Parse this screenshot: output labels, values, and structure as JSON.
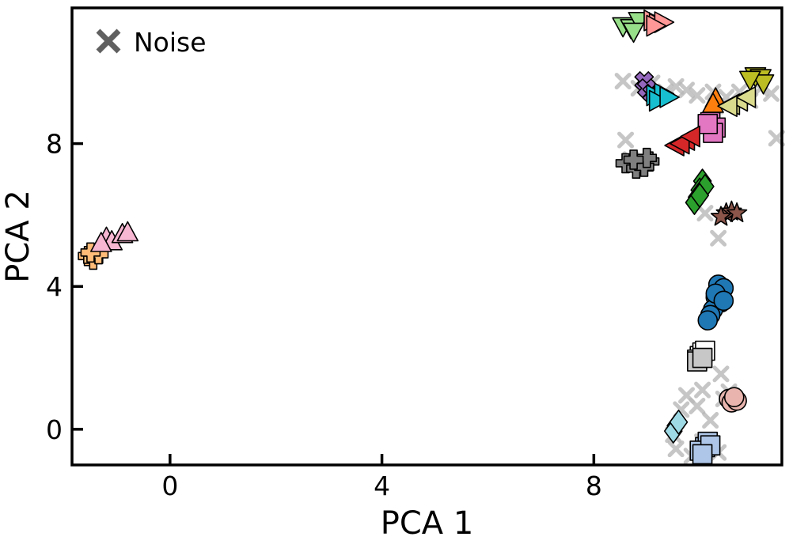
{
  "chart_data": {
    "type": "scatter",
    "title": "",
    "xlabel": "PCA 1",
    "ylabel": "PCA 2",
    "xlim": [
      -1.85,
      11.55
    ],
    "ylim": [
      -1.0,
      11.8
    ],
    "xticks": [
      0,
      4,
      8
    ],
    "yticks": [
      0,
      4,
      8
    ],
    "grid": false,
    "legend": {
      "position": "top-left",
      "entries": [
        {
          "label": "Noise",
          "marker": "x-icon",
          "color": "#606060"
        }
      ]
    },
    "noise": {
      "color": "#b8b8b8",
      "points": [
        [
          8.55,
          9.75
        ],
        [
          8.85,
          9.55
        ],
        [
          9.1,
          9.7
        ],
        [
          9.35,
          9.45
        ],
        [
          9.55,
          9.6
        ],
        [
          9.75,
          9.5
        ],
        [
          9.95,
          9.35
        ],
        [
          10.25,
          9.45
        ],
        [
          10.5,
          9.3
        ],
        [
          10.75,
          9.45
        ],
        [
          10.95,
          9.2
        ],
        [
          11.15,
          9.55
        ],
        [
          11.35,
          9.4
        ],
        [
          10.3,
          9.05
        ],
        [
          11.45,
          8.15
        ],
        [
          8.6,
          8.1
        ],
        [
          8.7,
          7.55
        ],
        [
          10.35,
          5.35
        ],
        [
          10.1,
          6.05
        ],
        [
          10.4,
          1.55
        ],
        [
          10.05,
          1.1
        ],
        [
          9.75,
          0.95
        ],
        [
          9.65,
          0.55
        ],
        [
          9.95,
          0.65
        ],
        [
          10.2,
          0.25
        ],
        [
          10.45,
          0.85
        ],
        [
          9.5,
          -0.15
        ],
        [
          9.55,
          -0.55
        ],
        [
          10.05,
          -0.35
        ],
        [
          10.35,
          -0.65
        ],
        [
          9.85,
          -0.75
        ],
        [
          10.55,
          1.05
        ]
      ]
    },
    "series": [
      {
        "marker": "circle",
        "color": "#1f77b4",
        "points": [
          [
            10.35,
            4.05
          ],
          [
            10.45,
            3.95
          ],
          [
            10.3,
            3.7
          ],
          [
            10.4,
            3.55
          ],
          [
            10.25,
            3.35
          ],
          [
            10.2,
            3.2
          ],
          [
            10.15,
            3.05
          ],
          [
            10.3,
            3.8
          ],
          [
            10.45,
            3.6
          ]
        ]
      },
      {
        "marker": "circle",
        "color": "#e8b4ad",
        "points": [
          [
            10.55,
            0.85
          ],
          [
            10.6,
            0.75
          ],
          [
            10.7,
            0.8
          ],
          [
            10.65,
            0.9
          ]
        ]
      },
      {
        "marker": "square",
        "color": "#ffffff",
        "points": [
          [
            10.0,
            2.05
          ],
          [
            10.05,
            2.15
          ],
          [
            9.95,
            1.95
          ],
          [
            10.1,
            2.2
          ]
        ]
      },
      {
        "marker": "square",
        "color": "#c7c7c7",
        "points": [
          [
            9.95,
            1.9
          ],
          [
            10.05,
            2.0
          ]
        ]
      },
      {
        "marker": "square",
        "color": "#aec7e8",
        "points": [
          [
            10.1,
            -0.5
          ],
          [
            10.15,
            -0.35
          ],
          [
            10.0,
            -0.6
          ],
          [
            10.2,
            -0.45
          ],
          [
            10.05,
            -0.7
          ]
        ]
      },
      {
        "marker": "square",
        "color": "#e377c2",
        "points": [
          [
            10.2,
            8.6
          ],
          [
            10.3,
            8.45
          ],
          [
            10.25,
            8.3
          ],
          [
            10.15,
            8.55
          ]
        ]
      },
      {
        "marker": "diamond",
        "color": "#2ca02c",
        "points": [
          [
            10.05,
            6.95
          ],
          [
            10.0,
            6.7
          ],
          [
            9.95,
            6.5
          ],
          [
            10.1,
            6.8
          ],
          [
            9.9,
            6.35
          ],
          [
            10.0,
            6.55
          ]
        ]
      },
      {
        "marker": "diamond",
        "color": "#9edae5",
        "points": [
          [
            9.55,
            0.1
          ],
          [
            9.5,
            -0.05
          ],
          [
            9.6,
            0.2
          ]
        ]
      },
      {
        "marker": "plus",
        "color": "#7f7f7f",
        "points": [
          [
            8.6,
            7.45
          ],
          [
            8.8,
            7.3
          ],
          [
            9.05,
            7.5
          ],
          [
            8.95,
            7.35
          ],
          [
            9.0,
            7.6
          ],
          [
            8.75,
            7.55
          ]
        ]
      },
      {
        "marker": "plus",
        "color": "#ffbb78",
        "points": [
          [
            -1.55,
            4.85
          ],
          [
            -1.45,
            4.75
          ],
          [
            -1.35,
            4.9
          ],
          [
            -1.5,
            4.95
          ]
        ]
      },
      {
        "marker": "xfill",
        "color": "#9467bd",
        "points": [
          [
            8.95,
            9.75
          ],
          [
            9.0,
            9.55
          ],
          [
            9.1,
            9.4
          ]
        ]
      },
      {
        "marker": "star",
        "color": "#8c564b",
        "points": [
          [
            10.5,
            6.05
          ],
          [
            10.6,
            6.1
          ],
          [
            10.4,
            5.95
          ],
          [
            10.7,
            6.05
          ]
        ]
      },
      {
        "marker": "tri-up",
        "color": "#ff7f0e",
        "points": [
          [
            10.3,
            9.25
          ],
          [
            10.25,
            9.1
          ]
        ]
      },
      {
        "marker": "tri-up",
        "color": "#f7b6d2",
        "points": [
          [
            -1.2,
            5.35
          ],
          [
            -1.1,
            5.25
          ],
          [
            -0.9,
            5.45
          ],
          [
            -0.8,
            5.5
          ],
          [
            -1.3,
            5.2
          ]
        ]
      },
      {
        "marker": "tri-down",
        "color": "#98df8a",
        "points": [
          [
            8.55,
            11.3
          ],
          [
            8.7,
            11.25
          ],
          [
            8.85,
            11.45
          ],
          [
            8.75,
            11.15
          ]
        ]
      },
      {
        "marker": "tri-down",
        "color": "#bcbd22",
        "points": [
          [
            11.05,
            9.9
          ],
          [
            11.15,
            9.85
          ],
          [
            11.2,
            9.7
          ],
          [
            10.95,
            9.8
          ]
        ]
      },
      {
        "marker": "tri-right",
        "color": "#ff9896",
        "points": [
          [
            9.1,
            11.45
          ],
          [
            9.2,
            11.35
          ],
          [
            9.3,
            11.4
          ],
          [
            9.15,
            11.3
          ]
        ]
      },
      {
        "marker": "tri-right",
        "color": "#17becf",
        "points": [
          [
            9.15,
            9.35
          ],
          [
            9.3,
            9.4
          ],
          [
            9.2,
            9.2
          ],
          [
            9.4,
            9.3
          ]
        ]
      },
      {
        "marker": "tri-left",
        "color": "#d62728",
        "points": [
          [
            9.55,
            7.95
          ],
          [
            9.75,
            8.1
          ],
          [
            9.65,
            8.0
          ],
          [
            9.85,
            8.2
          ]
        ]
      },
      {
        "marker": "tri-left",
        "color": "#dbdb8d",
        "points": [
          [
            10.6,
            9.1
          ],
          [
            10.75,
            9.2
          ],
          [
            10.9,
            9.3
          ],
          [
            10.55,
            9.05
          ]
        ]
      }
    ]
  }
}
